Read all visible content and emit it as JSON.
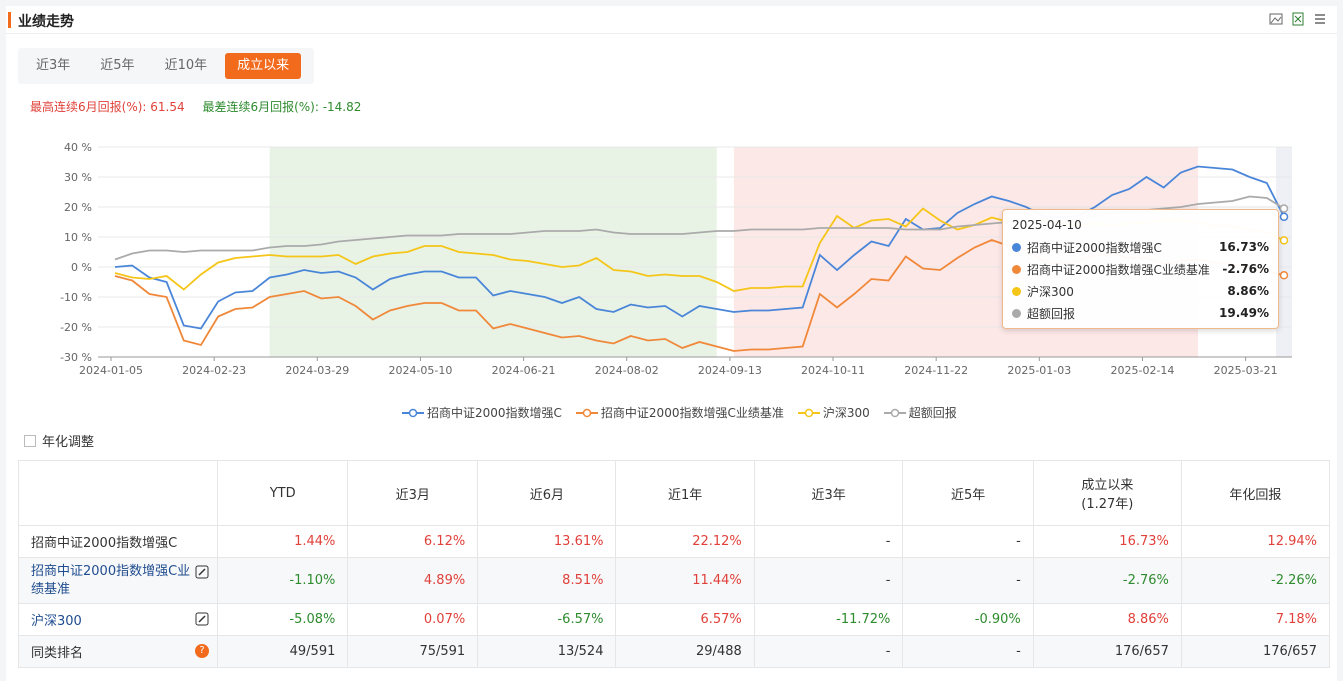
{
  "header": {
    "title": "业绩走势"
  },
  "tabs": [
    {
      "label": "近3年",
      "active": false
    },
    {
      "label": "近5年",
      "active": false
    },
    {
      "label": "近10年",
      "active": false
    },
    {
      "label": "成立以来",
      "active": true
    }
  ],
  "stats": {
    "best_label": "最高连续6月回报(%): 61.54",
    "worst_label": "最差连续6月回报(%): -14.82"
  },
  "colors": {
    "accent": "#f26b1d",
    "series": [
      "#4a86d8",
      "#f0883a",
      "#f5c518",
      "#aaaaaa"
    ],
    "green_band": "#e8f3e6",
    "red_band": "#fde8e8"
  },
  "chart_data": {
    "type": "line",
    "ylabel_unit": "%",
    "ylim": [
      -30,
      40
    ],
    "yticks": [
      "40 %",
      "30 %",
      "20 %",
      "10 %",
      "0 %",
      "-10 %",
      "-20 %",
      "-30 %"
    ],
    "xtick_labels": [
      "2024-01-05",
      "2024-02-23",
      "2024-03-29",
      "2024-05-10",
      "2024-06-21",
      "2024-08-02",
      "2024-09-13",
      "2024-10-11",
      "2024-11-22",
      "2025-01-03",
      "2025-02-14",
      "2025-03-21"
    ],
    "grid": true,
    "series": [
      {
        "name": "招商中证2000指数增强C",
        "values": [
          0,
          0.5,
          -3.5,
          -5,
          -19.5,
          -20.5,
          -11.5,
          -8.5,
          -8,
          -3.5,
          -2.5,
          -1,
          -2,
          -1.5,
          -3.5,
          -7.5,
          -4,
          -2.5,
          -1.5,
          -1.5,
          -3.5,
          -3.5,
          -9.5,
          -8,
          -9,
          -10,
          -12,
          -10,
          -14,
          -15,
          -12.5,
          -13.5,
          -13,
          -16.5,
          -13,
          -14,
          -15,
          -14.5,
          -14.5,
          -14,
          -13.5,
          4,
          -1,
          4,
          8.5,
          7,
          16,
          12.5,
          13,
          18,
          21,
          23.5,
          22,
          20,
          17,
          16.5,
          17,
          20,
          24,
          26,
          30,
          26.5,
          31.5,
          33.5,
          33,
          32.5,
          30,
          28,
          16.73
        ]
      },
      {
        "name": "招商中证2000指数增强C业绩基准",
        "values": [
          -3,
          -4.5,
          -9,
          -10,
          -24.5,
          -26,
          -16.5,
          -14,
          -13.5,
          -10,
          -9,
          -8,
          -10.5,
          -10,
          -13,
          -17.5,
          -14.5,
          -13,
          -12,
          -12,
          -14.5,
          -14.5,
          -20.5,
          -19,
          -20.5,
          -22,
          -23.5,
          -23,
          -24.5,
          -25.5,
          -23,
          -24.5,
          -24,
          -27,
          -25,
          -26.5,
          -28,
          -27.5,
          -27.5,
          -27,
          -26.5,
          -9,
          -13.5,
          -9,
          -4,
          -4.5,
          3.5,
          -0.5,
          -1,
          3,
          6.5,
          9,
          7,
          5.5,
          2,
          1,
          2,
          4,
          4.5,
          3,
          3,
          1,
          2,
          2.5,
          1.5,
          1,
          -0.5,
          -1.5,
          -2.76
        ]
      },
      {
        "name": "沪深300",
        "values": [
          -2,
          -3.5,
          -4,
          -3,
          -7.5,
          -2.5,
          1.5,
          3,
          3.5,
          4,
          3.5,
          3.5,
          3.5,
          4,
          1,
          3.5,
          4.5,
          5,
          7,
          7,
          5,
          4.5,
          4,
          2.5,
          2,
          1,
          0,
          0.5,
          3,
          -1,
          -1.5,
          -3,
          -2.5,
          -3,
          -3,
          -5,
          -8,
          -7,
          -7,
          -6.5,
          -6.5,
          8,
          17,
          13,
          15.5,
          16,
          13.5,
          19.5,
          15.5,
          12.5,
          14,
          16.5,
          15,
          15,
          15.5,
          14.5,
          14,
          14.5,
          14,
          14.5,
          15,
          15.5,
          15.5,
          15,
          13.5,
          13.5,
          12.5,
          11.5,
          8.86
        ]
      },
      {
        "name": "超额回报",
        "values": [
          2.5,
          4.5,
          5.5,
          5.5,
          5,
          5.5,
          5.5,
          5.5,
          5.5,
          6.5,
          7,
          7,
          7.5,
          8.5,
          9,
          9.5,
          10,
          10.5,
          10.5,
          10.5,
          11,
          11,
          11,
          11,
          11.5,
          12,
          12,
          12,
          12.5,
          11.5,
          11,
          11,
          11,
          11,
          11.5,
          12,
          12,
          12.5,
          12.5,
          12.5,
          12.5,
          13,
          13,
          13,
          13,
          13,
          12.5,
          12.5,
          12.5,
          13.5,
          14,
          14.5,
          15,
          15,
          15,
          15.5,
          16,
          17,
          18,
          18.5,
          19,
          19.5,
          20,
          21,
          21.5,
          22,
          23.5,
          23,
          19.49
        ]
      }
    ],
    "bands": [
      {
        "color": "green",
        "from_index": 9,
        "to_index": 35
      },
      {
        "color": "red",
        "from_index": 36,
        "to_index": 63
      }
    ],
    "tooltip": {
      "date": "2025-04-10",
      "rows": [
        {
          "name": "招商中证2000指数增强C",
          "value": "16.73%"
        },
        {
          "name": "招商中证2000指数增强C业绩基准",
          "value": "-2.76%"
        },
        {
          "name": "沪深300",
          "value": "8.86%"
        },
        {
          "name": "超额回报",
          "value": "19.49%"
        }
      ]
    }
  },
  "legend": [
    "招商中证2000指数增强C",
    "招商中证2000指数增强C业绩基准",
    "沪深300",
    "超额回报"
  ],
  "annual_adjust_label": "年化调整",
  "table": {
    "headers": [
      "",
      "YTD",
      "近3月",
      "近6月",
      "近1年",
      "近3年",
      "近5年",
      "成立以来\n(1.27年)",
      "年化回报"
    ],
    "header_main": "成立以来",
    "header_sub": "(1.27年)",
    "rows": [
      {
        "name": "招商中证2000指数增强C",
        "cells": [
          "1.44%",
          "6.12%",
          "13.61%",
          "22.12%",
          "-",
          "-",
          "16.73%",
          "12.94%"
        ]
      },
      {
        "name": "招商中证2000指数增强C业绩基准",
        "cells": [
          "-1.10%",
          "4.89%",
          "8.51%",
          "11.44%",
          "-",
          "-",
          "-2.76%",
          "-2.26%"
        ]
      },
      {
        "name": "沪深300",
        "cells": [
          "-5.08%",
          "0.07%",
          "-6.57%",
          "6.57%",
          "-11.72%",
          "-0.90%",
          "8.86%",
          "7.18%"
        ]
      },
      {
        "name": "同类排名",
        "cells": [
          "49/591",
          "75/591",
          "13/524",
          "29/488",
          "-",
          "-",
          "176/657",
          "176/657"
        ]
      }
    ]
  }
}
